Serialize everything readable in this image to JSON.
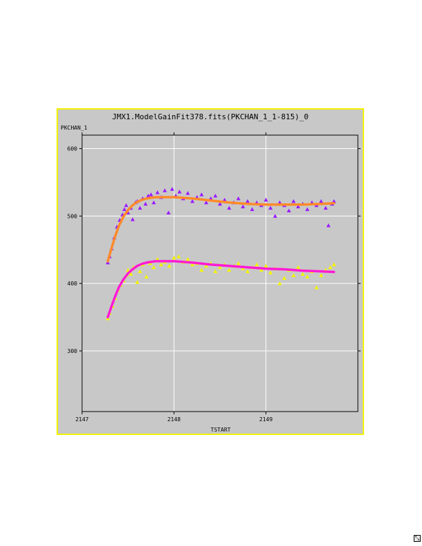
{
  "chart_data": {
    "type": "scatter",
    "title": "JMX1.ModelGainFit378.fits(PKCHAN_1_1-815)_0",
    "xlabel": "TSTART",
    "ylabel": "PKCHAN_1",
    "xlim": [
      2147,
      2150
    ],
    "ylim": [
      210,
      620
    ],
    "x_ticks": [
      2147,
      2148,
      2149
    ],
    "y_ticks": [
      300,
      400,
      500,
      600
    ],
    "grid": true,
    "series": [
      {
        "kind": "scatter",
        "marker": "triangle",
        "color": "#9a1aff",
        "points": [
          [
            2147.28,
            431
          ],
          [
            2147.3,
            440
          ],
          [
            2147.32,
            452
          ],
          [
            2147.35,
            468
          ],
          [
            2147.38,
            484
          ],
          [
            2147.41,
            494
          ],
          [
            2147.44,
            502
          ],
          [
            2147.46,
            510
          ],
          [
            2147.48,
            516
          ],
          [
            2147.5,
            505
          ],
          [
            2147.53,
            512
          ],
          [
            2147.55,
            495
          ],
          [
            2147.58,
            520
          ],
          [
            2147.6,
            522
          ],
          [
            2147.63,
            512
          ],
          [
            2147.66,
            526
          ],
          [
            2147.69,
            518
          ],
          [
            2147.72,
            530
          ],
          [
            2147.75,
            532
          ],
          [
            2147.78,
            520
          ],
          [
            2147.82,
            535
          ],
          [
            2147.86,
            528
          ],
          [
            2147.9,
            538
          ],
          [
            2147.94,
            505
          ],
          [
            2147.98,
            540
          ],
          [
            2148.02,
            530
          ],
          [
            2148.06,
            536
          ],
          [
            2148.1,
            526
          ],
          [
            2148.15,
            534
          ],
          [
            2148.2,
            522
          ],
          [
            2148.25,
            528
          ],
          [
            2148.3,
            532
          ],
          [
            2148.35,
            520
          ],
          [
            2148.4,
            526
          ],
          [
            2148.45,
            530
          ],
          [
            2148.5,
            518
          ],
          [
            2148.55,
            524
          ],
          [
            2148.6,
            512
          ],
          [
            2148.65,
            520
          ],
          [
            2148.7,
            526
          ],
          [
            2148.75,
            514
          ],
          [
            2148.8,
            522
          ],
          [
            2148.85,
            510
          ],
          [
            2148.9,
            520
          ],
          [
            2148.95,
            516
          ],
          [
            2149.0,
            524
          ],
          [
            2149.05,
            512
          ],
          [
            2149.1,
            500
          ],
          [
            2149.15,
            520
          ],
          [
            2149.2,
            516
          ],
          [
            2149.25,
            508
          ],
          [
            2149.3,
            522
          ],
          [
            2149.35,
            514
          ],
          [
            2149.4,
            518
          ],
          [
            2149.45,
            510
          ],
          [
            2149.5,
            520
          ],
          [
            2149.55,
            516
          ],
          [
            2149.6,
            522
          ],
          [
            2149.65,
            512
          ],
          [
            2149.68,
            486
          ],
          [
            2149.72,
            518
          ],
          [
            2149.74,
            522
          ]
        ]
      },
      {
        "kind": "scatter",
        "marker": "triangle",
        "color": "#f4f400",
        "points": [
          [
            2147.28,
            348
          ],
          [
            2147.3,
            356
          ],
          [
            2147.33,
            366
          ],
          [
            2147.36,
            378
          ],
          [
            2147.39,
            390
          ],
          [
            2147.42,
            398
          ],
          [
            2147.45,
            404
          ],
          [
            2147.48,
            412
          ],
          [
            2147.5,
            420
          ],
          [
            2147.53,
            414
          ],
          [
            2147.56,
            424
          ],
          [
            2147.6,
            402
          ],
          [
            2147.63,
            418
          ],
          [
            2147.66,
            428
          ],
          [
            2147.7,
            410
          ],
          [
            2147.74,
            430
          ],
          [
            2147.78,
            424
          ],
          [
            2147.82,
            436
          ],
          [
            2147.86,
            428
          ],
          [
            2147.9,
            432
          ],
          [
            2147.95,
            426
          ],
          [
            2148.0,
            438
          ],
          [
            2148.05,
            440
          ],
          [
            2148.1,
            432
          ],
          [
            2148.15,
            436
          ],
          [
            2148.2,
            428
          ],
          [
            2148.25,
            430
          ],
          [
            2148.3,
            420
          ],
          [
            2148.35,
            426
          ],
          [
            2148.4,
            430
          ],
          [
            2148.45,
            418
          ],
          [
            2148.5,
            424
          ],
          [
            2148.55,
            428
          ],
          [
            2148.6,
            420
          ],
          [
            2148.65,
            426
          ],
          [
            2148.7,
            430
          ],
          [
            2148.75,
            422
          ],
          [
            2148.8,
            418
          ],
          [
            2148.85,
            424
          ],
          [
            2148.9,
            428
          ],
          [
            2148.95,
            420
          ],
          [
            2149.0,
            426
          ],
          [
            2149.05,
            416
          ],
          [
            2149.1,
            422
          ],
          [
            2149.15,
            400
          ],
          [
            2149.2,
            408
          ],
          [
            2149.25,
            420
          ],
          [
            2149.3,
            412
          ],
          [
            2149.35,
            424
          ],
          [
            2149.4,
            414
          ],
          [
            2149.45,
            410
          ],
          [
            2149.5,
            418
          ],
          [
            2149.55,
            394
          ],
          [
            2149.6,
            412
          ],
          [
            2149.65,
            420
          ],
          [
            2149.7,
            424
          ],
          [
            2149.74,
            428
          ]
        ]
      },
      {
        "kind": "line",
        "color": "#ff8a2a",
        "points": [
          [
            2147.28,
            433
          ],
          [
            2147.32,
            452
          ],
          [
            2147.36,
            470
          ],
          [
            2147.4,
            485
          ],
          [
            2147.45,
            499
          ],
          [
            2147.5,
            509
          ],
          [
            2147.55,
            516
          ],
          [
            2147.6,
            521
          ],
          [
            2147.65,
            524
          ],
          [
            2147.7,
            526
          ],
          [
            2147.8,
            528
          ],
          [
            2147.9,
            528
          ],
          [
            2148.0,
            528
          ],
          [
            2148.2,
            526
          ],
          [
            2148.4,
            523
          ],
          [
            2148.6,
            520
          ],
          [
            2148.8,
            518
          ],
          [
            2149.0,
            517
          ],
          [
            2149.2,
            517
          ],
          [
            2149.4,
            517
          ],
          [
            2149.6,
            518
          ],
          [
            2149.74,
            519
          ]
        ]
      },
      {
        "kind": "line",
        "color": "#ff1ad4",
        "points": [
          [
            2147.28,
            350
          ],
          [
            2147.32,
            366
          ],
          [
            2147.36,
            381
          ],
          [
            2147.4,
            394
          ],
          [
            2147.45,
            406
          ],
          [
            2147.5,
            415
          ],
          [
            2147.55,
            421
          ],
          [
            2147.6,
            426
          ],
          [
            2147.65,
            429
          ],
          [
            2147.7,
            431
          ],
          [
            2147.8,
            433
          ],
          [
            2147.9,
            433
          ],
          [
            2148.0,
            433
          ],
          [
            2148.2,
            431
          ],
          [
            2148.4,
            428
          ],
          [
            2148.6,
            426
          ],
          [
            2148.8,
            424
          ],
          [
            2149.0,
            422
          ],
          [
            2149.2,
            421
          ],
          [
            2149.4,
            419
          ],
          [
            2149.6,
            418
          ],
          [
            2149.74,
            417
          ]
        ]
      }
    ]
  },
  "ui": {
    "resize_glyph": "⤡"
  }
}
